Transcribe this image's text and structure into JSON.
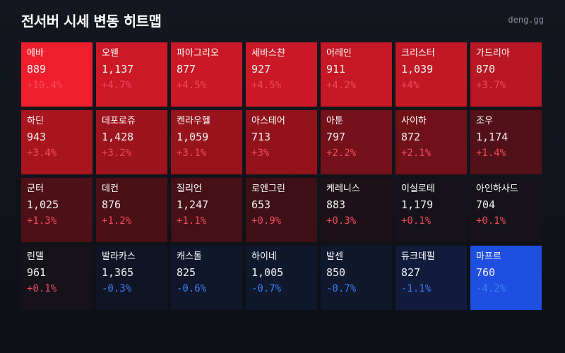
{
  "header": {
    "title": "전서버 시세 변동 히트맵",
    "brand": "deng.gg"
  },
  "colors": {
    "pos_text": "#f24a5c",
    "neg_text": "#3b82f6"
  },
  "tiles": [
    {
      "name": "에바",
      "price": "889",
      "change": "+10.4%",
      "bg": "#f01e2c",
      "dir": "up"
    },
    {
      "name": "오웬",
      "price": "1,137",
      "change": "+4.7%",
      "bg": "#cd1826",
      "dir": "up"
    },
    {
      "name": "파아그리오",
      "price": "877",
      "change": "+4.5%",
      "bg": "#ca1826",
      "dir": "up"
    },
    {
      "name": "세바스챤",
      "price": "927",
      "change": "+4.5%",
      "bg": "#ca1826",
      "dir": "up"
    },
    {
      "name": "어레인",
      "price": "911",
      "change": "+4.2%",
      "bg": "#c51724",
      "dir": "up"
    },
    {
      "name": "크리스터",
      "price": "1,039",
      "change": "+4%",
      "bg": "#c21724",
      "dir": "up"
    },
    {
      "name": "가드리아",
      "price": "870",
      "change": "+3.7%",
      "bg": "#b81622",
      "dir": "up"
    },
    {
      "name": "하딘",
      "price": "943",
      "change": "+3.4%",
      "bg": "#a8151f",
      "dir": "up"
    },
    {
      "name": "데포로쥬",
      "price": "1,428",
      "change": "+3.2%",
      "bg": "#9d141e",
      "dir": "up"
    },
    {
      "name": "켄라우헬",
      "price": "1,059",
      "change": "+3.1%",
      "bg": "#98141d",
      "dir": "up"
    },
    {
      "name": "아스테어",
      "price": "713",
      "change": "+3%",
      "bg": "#93131c",
      "dir": "up"
    },
    {
      "name": "아툰",
      "price": "797",
      "change": "+2.2%",
      "bg": "#74111a",
      "dir": "up"
    },
    {
      "name": "사이하",
      "price": "872",
      "change": "+2.1%",
      "bg": "#701119",
      "dir": "up"
    },
    {
      "name": "조우",
      "price": "1,174",
      "change": "+1.4%",
      "bg": "#521018",
      "dir": "up"
    },
    {
      "name": "군터",
      "price": "1,025",
      "change": "+1.3%",
      "bg": "#4e1017",
      "dir": "up"
    },
    {
      "name": "데컨",
      "price": "876",
      "change": "+1.2%",
      "bg": "#4a1016",
      "dir": "up"
    },
    {
      "name": "질리언",
      "price": "1,247",
      "change": "+1.1%",
      "bg": "#461016",
      "dir": "up"
    },
    {
      "name": "로엔그린",
      "price": "653",
      "change": "+0.9%",
      "bg": "#3c1016",
      "dir": "up"
    },
    {
      "name": "케레니스",
      "price": "883",
      "change": "+0.3%",
      "bg": "#1c1218",
      "dir": "up"
    },
    {
      "name": "이실로테",
      "price": "1,179",
      "change": "+0.1%",
      "bg": "#15121a",
      "dir": "up"
    },
    {
      "name": "아인하사드",
      "price": "704",
      "change": "+0.1%",
      "bg": "#15121a",
      "dir": "up"
    },
    {
      "name": "린델",
      "price": "961",
      "change": "+0.1%",
      "bg": "#15121a",
      "dir": "up"
    },
    {
      "name": "발라카스",
      "price": "1,365",
      "change": "-0.3%",
      "bg": "#101526",
      "dir": "down"
    },
    {
      "name": "캐스톨",
      "price": "825",
      "change": "-0.6%",
      "bg": "#10172c",
      "dir": "down"
    },
    {
      "name": "하이네",
      "price": "1,005",
      "change": "-0.7%",
      "bg": "#10182e",
      "dir": "down"
    },
    {
      "name": "발센",
      "price": "850",
      "change": "-0.7%",
      "bg": "#10182e",
      "dir": "down"
    },
    {
      "name": "듀크데필",
      "price": "827",
      "change": "-1.1%",
      "bg": "#111c3c",
      "dir": "down"
    },
    {
      "name": "마프르",
      "price": "760",
      "change": "-4.2%",
      "bg": "#1e4fe0",
      "dir": "down"
    }
  ]
}
